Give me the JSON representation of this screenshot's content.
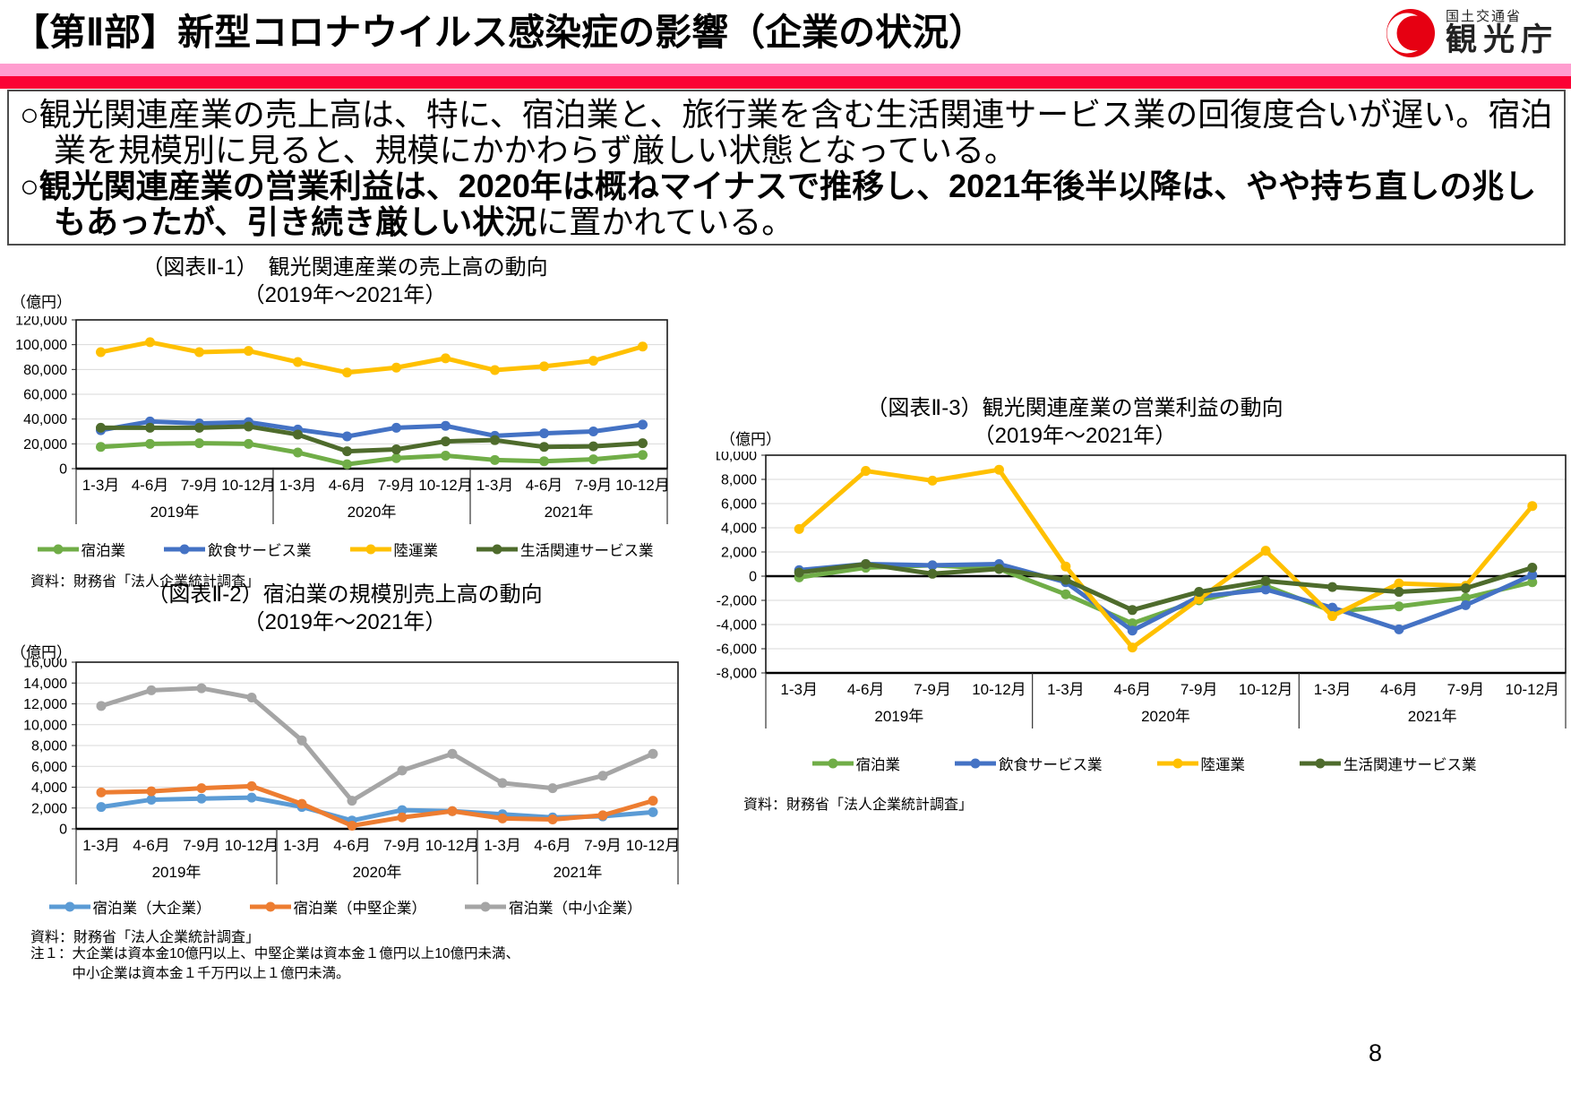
{
  "header": {
    "title": "【第Ⅱ部】新型コロナウイルス感染症の影響（企業の状況）",
    "logo": {
      "ministry": "国土交通省",
      "agency": "観光庁"
    }
  },
  "summary": {
    "bullet_marker": "○",
    "bullet1": "観光関連産業の売上高は、特に、宿泊業と、旅行業を含む生活関連サービス業の回復度合いが遅い。宿泊業を規模別に見ると、規模にかかわらず厳しい状態となっている。",
    "bullet2_bold": "観光関連産業の営業利益は、2020年は概ねマイナスで推移し、2021年後半以降は、やや持ち直しの兆しもあったが、引き続き厳しい状況",
    "bullet2_tail": "に置かれている。"
  },
  "page_number": "8",
  "chart_data": [
    {
      "type": "line",
      "title": "（図表Ⅱ-1）　観光関連産業の売上高の動向",
      "subtitle": "（2019年～2021年）",
      "unit": "（億円）",
      "categories": [
        "1-3月",
        "4-6月",
        "7-9月",
        "10-12月",
        "1-3月",
        "4-6月",
        "7-9月",
        "10-12月",
        "1-3月",
        "4-6月",
        "7-9月",
        "10-12月"
      ],
      "year_groups": [
        "2019年",
        "2020年",
        "2021年"
      ],
      "ylim": [
        0,
        120000
      ],
      "ytick": 20000,
      "grid": true,
      "legend_position": "bottom",
      "series": [
        {
          "name": "宿泊業",
          "color": "#70AD47",
          "values": [
            17500,
            20000,
            20500,
            20000,
            13000,
            3500,
            8500,
            10500,
            7000,
            6000,
            7500,
            11000
          ]
        },
        {
          "name": "飲食サービス業",
          "color": "#4472C4",
          "values": [
            31000,
            38000,
            36500,
            37500,
            31500,
            26000,
            33000,
            34500,
            26500,
            28500,
            30000,
            35500
          ]
        },
        {
          "name": "陸運業",
          "color": "#FFC000",
          "values": [
            94000,
            102000,
            94000,
            95000,
            86000,
            77500,
            81500,
            89000,
            79500,
            82500,
            87000,
            98500
          ]
        },
        {
          "name": "生活関連サービス業",
          "color": "#4E6B2C",
          "values": [
            33000,
            33000,
            33000,
            34000,
            27500,
            14000,
            15500,
            22000,
            23000,
            17500,
            18000,
            20500
          ]
        }
      ],
      "source": "資料：財務省「法人企業統計調査」"
    },
    {
      "type": "line",
      "title": "（図表Ⅱ-2）宿泊業の規模別売上高の動向",
      "subtitle": "（2019年～2021年）",
      "unit": "（億円）",
      "categories": [
        "1-3月",
        "4-6月",
        "7-9月",
        "10-12月",
        "1-3月",
        "4-6月",
        "7-9月",
        "10-12月",
        "1-3月",
        "4-6月",
        "7-9月",
        "10-12月"
      ],
      "year_groups": [
        "2019年",
        "2020年",
        "2021年"
      ],
      "ylim": [
        0,
        16000
      ],
      "ytick": 2000,
      "grid": true,
      "legend_position": "bottom",
      "series": [
        {
          "name": "宿泊業（大企業）",
          "color": "#5B9BD5",
          "values": [
            2100,
            2800,
            2900,
            3000,
            2100,
            800,
            1800,
            1700,
            1400,
            1100,
            1200,
            1600
          ]
        },
        {
          "name": "宿泊業（中堅企業）",
          "color": "#ED7D31",
          "values": [
            3500,
            3600,
            3900,
            4100,
            2400,
            300,
            1100,
            1700,
            1000,
            900,
            1300,
            2700
          ]
        },
        {
          "name": "宿泊業（中小企業）",
          "color": "#A5A5A5",
          "values": [
            11800,
            13300,
            13500,
            12600,
            8500,
            2700,
            5600,
            7200,
            4400,
            3900,
            5100,
            7200
          ]
        }
      ],
      "source": "資料：財務省「法人企業統計調査」",
      "notes": [
        "注１：大企業は資本金10億円以上、中堅企業は資本金１億円以上10億円未満、",
        "　　　中小企業は資本金１千万円以上１億円未満。"
      ]
    },
    {
      "type": "line",
      "title": "（図表Ⅱ-3）観光関連産業の営業利益の動向",
      "subtitle": "（2019年～2021年）",
      "unit": "（億円）",
      "categories": [
        "1-3月",
        "4-6月",
        "7-9月",
        "10-12月",
        "1-3月",
        "4-6月",
        "7-9月",
        "10-12月",
        "1-3月",
        "4-6月",
        "7-9月",
        "10-12月"
      ],
      "year_groups": [
        "2019年",
        "2020年",
        "2021年"
      ],
      "ylim": [
        -8000,
        10000
      ],
      "ytick": 2000,
      "grid": true,
      "legend_position": "bottom",
      "series": [
        {
          "name": "宿泊業",
          "color": "#70AD47",
          "values": [
            -100,
            700,
            900,
            600,
            -1500,
            -3900,
            -2000,
            -800,
            -2900,
            -2500,
            -1800,
            -500
          ]
        },
        {
          "name": "飲食サービス業",
          "color": "#4472C4",
          "values": [
            500,
            1000,
            900,
            1000,
            -500,
            -4500,
            -1700,
            -1100,
            -2600,
            -4400,
            -2400,
            100
          ]
        },
        {
          "name": "陸運業",
          "color": "#FFC000",
          "values": [
            3900,
            8700,
            7900,
            8800,
            800,
            -5900,
            -1900,
            2100,
            -3300,
            -600,
            -800,
            5800
          ]
        },
        {
          "name": "生活関連サービス業",
          "color": "#4E6B2C",
          "values": [
            300,
            1000,
            200,
            600,
            -300,
            -2800,
            -1300,
            -400,
            -900,
            -1300,
            -1000,
            700
          ]
        }
      ],
      "source": "資料：財務省「法人企業統計調査」"
    }
  ]
}
